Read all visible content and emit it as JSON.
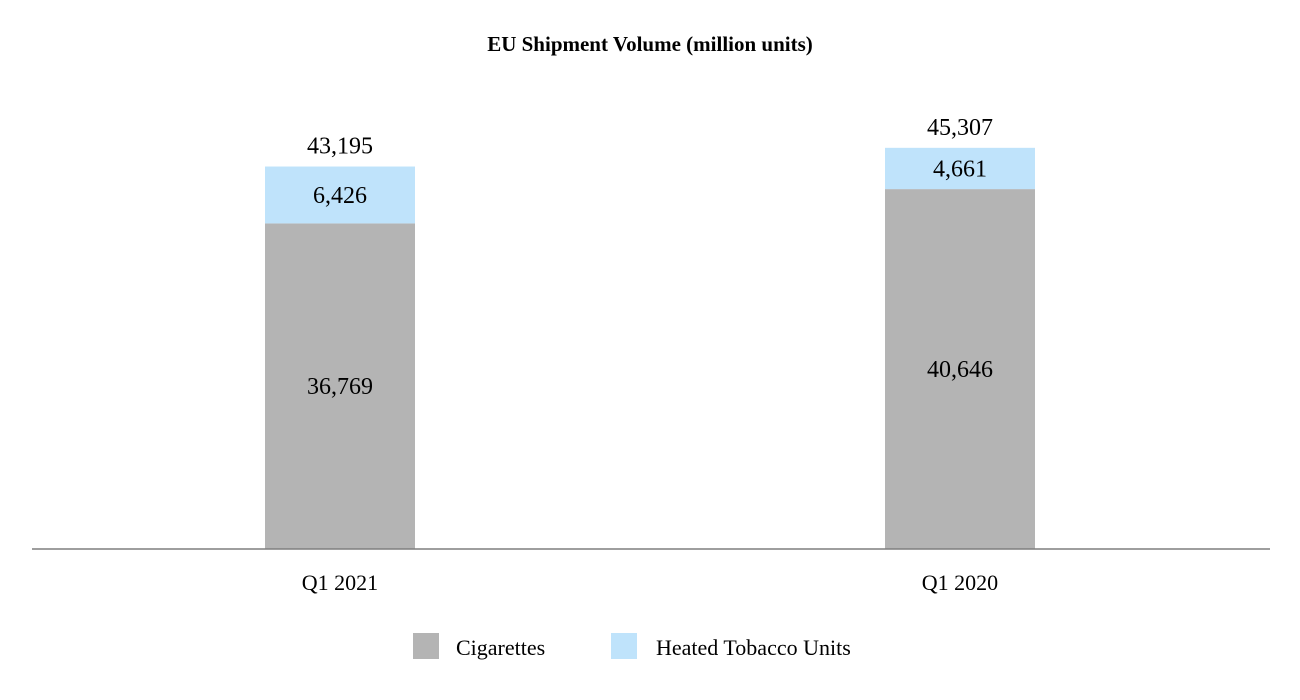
{
  "chart_data": {
    "type": "bar",
    "stacked": true,
    "title": "EU Shipment Volume (million units)",
    "xlabel": "",
    "ylabel": "",
    "categories": [
      "Q1 2021",
      "Q1 2020"
    ],
    "series": [
      {
        "name": "Cigarettes",
        "values": [
          36769,
          40646
        ],
        "value_labels": [
          "36,769",
          "40,646"
        ],
        "color": "#b4b4b4"
      },
      {
        "name": "Heated Tobacco Units",
        "values": [
          6426,
          4661
        ],
        "value_labels": [
          "6,426",
          "4,661"
        ],
        "color": "#bfe3fb"
      }
    ],
    "totals": [
      43195,
      45307
    ],
    "total_labels": [
      "43,195",
      "45,307"
    ],
    "ylim": [
      0,
      55000
    ],
    "grid": false,
    "y_axis_visible": false,
    "legend_position": "bottom-center"
  }
}
